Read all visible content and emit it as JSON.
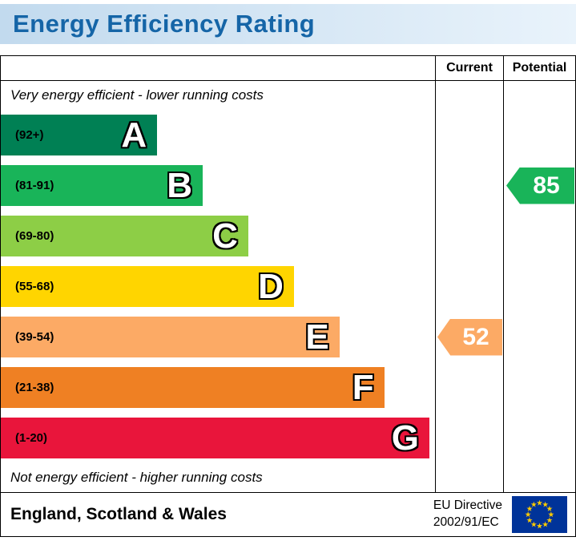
{
  "title": "Energy Efficiency Rating",
  "header": {
    "current": "Current",
    "potential": "Potential"
  },
  "notes": {
    "top": "Very energy efficient - lower running costs",
    "bottom": "Not energy efficient - higher running costs"
  },
  "footer": {
    "region": "England, Scotland & Wales",
    "directive_line1": "EU Directive",
    "directive_line2": "2002/91/EC"
  },
  "colors": {
    "title_text": "#1565a7",
    "title_bar_left": "#c2daee",
    "title_bar_right": "#e9f3fb",
    "border": "#000000",
    "eu_flag_blue": "#003399",
    "eu_flag_stars": "#ffcc00"
  },
  "chart_data": {
    "type": "bar",
    "orientation": "horizontal",
    "title": "Energy Efficiency Rating",
    "columns": [
      "Current",
      "Potential"
    ],
    "bands": [
      {
        "letter": "A",
        "range": "(92+)",
        "color": "#008054",
        "width_pct": 36
      },
      {
        "letter": "B",
        "range": "(81-91)",
        "color": "#19b459",
        "width_pct": 46.5
      },
      {
        "letter": "C",
        "range": "(69-80)",
        "color": "#8dce46",
        "width_pct": 57
      },
      {
        "letter": "D",
        "range": "(55-68)",
        "color": "#ffd500",
        "width_pct": 67.5
      },
      {
        "letter": "E",
        "range": "(39-54)",
        "color": "#fcaa65",
        "width_pct": 78
      },
      {
        "letter": "F",
        "range": "(21-38)",
        "color": "#ef8023",
        "width_pct": 88.3
      },
      {
        "letter": "G",
        "range": "(1-20)",
        "color": "#e9153b",
        "width_pct": 98.7
      }
    ],
    "current": {
      "label": "52",
      "value": 52,
      "band": "E",
      "band_index": 4,
      "color": "#fcaa65"
    },
    "potential": {
      "label": "85",
      "value": 85,
      "band": "B",
      "band_index": 1,
      "color": "#19b459"
    }
  }
}
